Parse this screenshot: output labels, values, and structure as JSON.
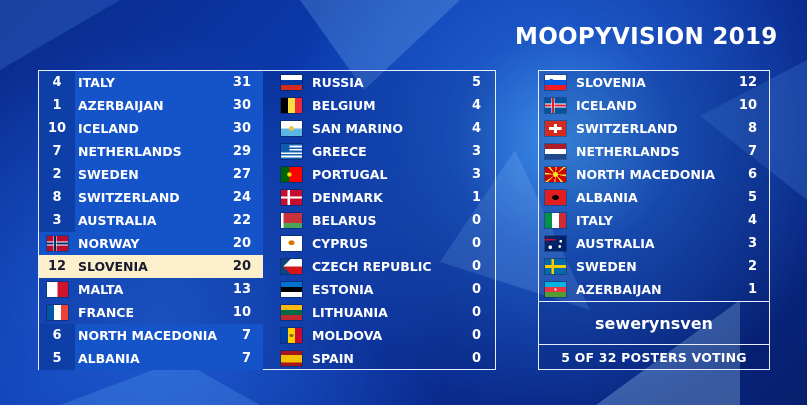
{
  "title": "MOOPYVISION 2019",
  "scoreboard_left": [
    {
      "rank": "4",
      "flag": null,
      "country": "ITALY",
      "points": "31",
      "style": "top"
    },
    {
      "rank": "1",
      "flag": null,
      "country": "AZERBAIJAN",
      "points": "30",
      "style": "top"
    },
    {
      "rank": "10",
      "flag": null,
      "country": "ICELAND",
      "points": "30",
      "style": "top"
    },
    {
      "rank": "7",
      "flag": null,
      "country": "NETHERLANDS",
      "points": "29",
      "style": "top"
    },
    {
      "rank": "2",
      "flag": null,
      "country": "SWEDEN",
      "points": "27",
      "style": "top"
    },
    {
      "rank": "8",
      "flag": null,
      "country": "SWITZERLAND",
      "points": "24",
      "style": "top"
    },
    {
      "rank": "3",
      "flag": null,
      "country": "AUSTRALIA",
      "points": "22",
      "style": "top"
    },
    {
      "rank": "",
      "flag": "norway",
      "country": "NORWAY",
      "points": "20",
      "style": "top"
    },
    {
      "rank": "12",
      "flag": null,
      "country": "SLOVENIA",
      "points": "20",
      "style": "hl"
    },
    {
      "rank": "",
      "flag": "malta",
      "country": "MALTA",
      "points": "13",
      "style": "plain"
    },
    {
      "rank": "",
      "flag": "france",
      "country": "FRANCE",
      "points": "10",
      "style": "plain"
    },
    {
      "rank": "6",
      "flag": null,
      "country": "NORTH MACEDONIA",
      "points": "7",
      "style": "top"
    },
    {
      "rank": "5",
      "flag": null,
      "country": "ALBANIA",
      "points": "7",
      "style": "top"
    }
  ],
  "scoreboard_mid": [
    {
      "flag": "russia",
      "country": "RUSSIA",
      "points": "5"
    },
    {
      "flag": "belgium",
      "country": "BELGIUM",
      "points": "4"
    },
    {
      "flag": "sanmarino",
      "country": "SAN MARINO",
      "points": "4"
    },
    {
      "flag": "greece",
      "country": "GREECE",
      "points": "3"
    },
    {
      "flag": "portugal",
      "country": "PORTUGAL",
      "points": "3"
    },
    {
      "flag": "denmark",
      "country": "DENMARK",
      "points": "1"
    },
    {
      "flag": "belarus",
      "country": "BELARUS",
      "points": "0"
    },
    {
      "flag": "cyprus",
      "country": "CYPRUS",
      "points": "0"
    },
    {
      "flag": "czech",
      "country": "CZECH REPUBLIC",
      "points": "0"
    },
    {
      "flag": "estonia",
      "country": "ESTONIA",
      "points": "0"
    },
    {
      "flag": "lithuania",
      "country": "LITHUANIA",
      "points": "0"
    },
    {
      "flag": "moldova",
      "country": "MOLDOVA",
      "points": "0"
    },
    {
      "flag": "spain",
      "country": "SPAIN",
      "points": "0"
    }
  ],
  "votes_given": [
    {
      "flag": "slovenia",
      "country": "SLOVENIA",
      "points": "12"
    },
    {
      "flag": "iceland",
      "country": "ICELAND",
      "points": "10"
    },
    {
      "flag": "switzerland",
      "country": "SWITZERLAND",
      "points": "8"
    },
    {
      "flag": "netherlands",
      "country": "NETHERLANDS",
      "points": "7"
    },
    {
      "flag": "northmacedonia",
      "country": "NORTH MACEDONIA",
      "points": "6"
    },
    {
      "flag": "albania",
      "country": "ALBANIA",
      "points": "5"
    },
    {
      "flag": "italy",
      "country": "ITALY",
      "points": "4"
    },
    {
      "flag": "australia",
      "country": "AUSTRALIA",
      "points": "3"
    },
    {
      "flag": "sweden",
      "country": "SWEDEN",
      "points": "2"
    },
    {
      "flag": "azerbaijan",
      "country": "AZERBAIJAN",
      "points": "1"
    }
  ],
  "poster_name": "sewerynsven",
  "voting_status": "5 OF 32 POSTERS VOTING"
}
